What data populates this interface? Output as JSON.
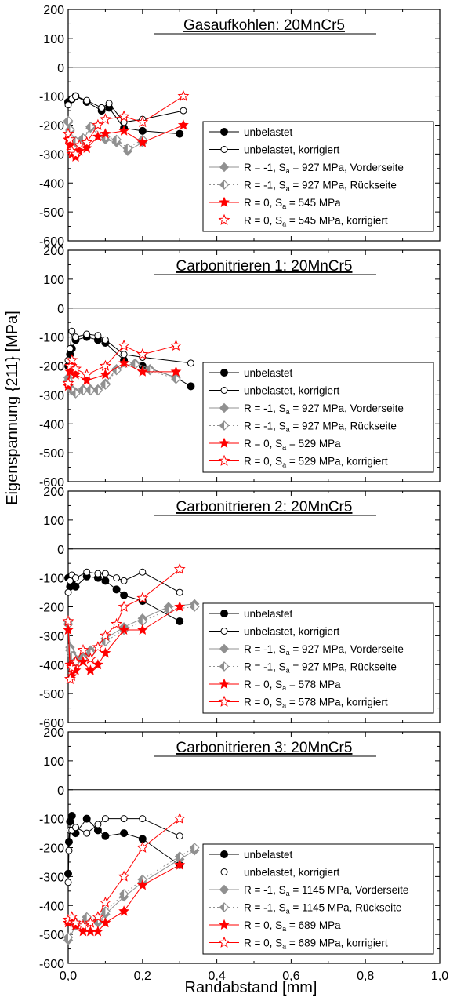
{
  "figure": {
    "xlabel": "Randabstand [mm]",
    "ylabel": "Eigenspannung {211} [MPa]",
    "x_ticks": [
      "0,0",
      "0,2",
      "0,4",
      "0,6",
      "0,8",
      "1,0"
    ],
    "y_ticks": [
      "200",
      "100",
      "0",
      "-100",
      "-200",
      "-300",
      "-400",
      "-500",
      "-600"
    ]
  },
  "chart_data": [
    {
      "type": "line",
      "title": "Gasaufkohlen: 20MnCr5",
      "xlim": [
        0,
        1.0
      ],
      "ylim": [
        -600,
        200
      ],
      "series": [
        {
          "name": "unbelastet",
          "style": "filled-circle",
          "color": "#000000",
          "x": [
            0.0,
            0.01,
            0.02,
            0.05,
            0.09,
            0.11,
            0.15,
            0.2,
            0.3
          ],
          "y": [
            -120,
            -110,
            -100,
            -120,
            -150,
            -140,
            -210,
            -220,
            -230
          ]
        },
        {
          "name": "unbelastet, korrigiert",
          "style": "open-circle",
          "color": "#000000",
          "x": [
            0.0,
            0.01,
            0.02,
            0.05,
            0.09,
            0.11,
            0.15,
            0.2,
            0.31
          ],
          "y": [
            -130,
            -110,
            -100,
            -115,
            -140,
            -125,
            -190,
            -180,
            -150
          ]
        },
        {
          "name_parts": [
            "R = -1, S",
            "a",
            " = 927 MPa, Vorderseite"
          ],
          "style": "filled-diamond",
          "color": "#909090",
          "x": [
            0.0,
            0.005,
            0.02,
            0.04,
            0.06,
            0.1,
            0.13,
            0.16,
            0.2
          ],
          "y": [
            -190,
            -220,
            -260,
            -250,
            -210,
            -250,
            -260,
            -290,
            -260
          ]
        },
        {
          "name_parts": [
            "R = -1, S",
            "a",
            " = 927 MPa, Rückseite"
          ],
          "style": "open-diamond",
          "color": "#909090",
          "x": [
            0.0,
            0.005,
            0.02,
            0.04,
            0.06,
            0.1,
            0.13,
            0.16,
            0.2
          ],
          "y": [
            -185,
            -215,
            -255,
            -245,
            -205,
            -240,
            -250,
            -280,
            -250
          ]
        },
        {
          "name_parts": [
            "R = 0, S",
            "a",
            " = 545 MPa"
          ],
          "style": "filled-star",
          "color": "#ff0000",
          "x": [
            0.0,
            0.005,
            0.01,
            0.02,
            0.03,
            0.05,
            0.08,
            0.1,
            0.15,
            0.2,
            0.31
          ],
          "y": [
            -250,
            -270,
            -300,
            -310,
            -290,
            -280,
            -240,
            -230,
            -220,
            -260,
            -200
          ]
        },
        {
          "name_parts": [
            "R = 0, S",
            "a",
            " = 545 MPa, korrigiert"
          ],
          "style": "open-star",
          "color": "#ff0000",
          "x": [
            0.0,
            0.005,
            0.01,
            0.02,
            0.03,
            0.05,
            0.08,
            0.1,
            0.15,
            0.2,
            0.31
          ],
          "y": [
            -230,
            -250,
            -290,
            -300,
            -270,
            -260,
            -200,
            -180,
            -170,
            -190,
            -100
          ]
        }
      ]
    },
    {
      "type": "line",
      "title": "Carbonitrieren 1: 20MnCr5",
      "xlim": [
        0,
        1.0
      ],
      "ylim": [
        -600,
        200
      ],
      "series": [
        {
          "name": "unbelastet",
          "style": "filled-circle",
          "color": "#000000",
          "x": [
            0.0,
            0.005,
            0.01,
            0.02,
            0.05,
            0.08,
            0.1,
            0.15,
            0.2,
            0.29,
            0.33
          ],
          "y": [
            -200,
            -160,
            -140,
            -110,
            -100,
            -110,
            -120,
            -180,
            -200,
            -240,
            -270
          ]
        },
        {
          "name": "unbelastet, korrigiert",
          "style": "open-circle",
          "color": "#000000",
          "x": [
            0.0,
            0.005,
            0.01,
            0.02,
            0.05,
            0.08,
            0.1,
            0.15,
            0.2,
            0.33
          ],
          "y": [
            -180,
            -140,
            -80,
            -100,
            -90,
            -95,
            -110,
            -160,
            -170,
            -190
          ]
        },
        {
          "name_parts": [
            "R = -1, S",
            "a",
            " = 927 MPa, Vorderseite"
          ],
          "style": "filled-diamond",
          "color": "#909090",
          "x": [
            0.0,
            0.01,
            0.02,
            0.04,
            0.06,
            0.08,
            0.1,
            0.13,
            0.18,
            0.22,
            0.29
          ],
          "y": [
            -240,
            -280,
            -290,
            -280,
            -280,
            -280,
            -260,
            -210,
            -190,
            -210,
            -240
          ]
        },
        {
          "name_parts": [
            "R = -1, S",
            "a",
            " = 927 MPa, Rückseite"
          ],
          "style": "open-diamond",
          "color": "#909090",
          "x": [
            0.0,
            0.01,
            0.02,
            0.04,
            0.06,
            0.08,
            0.1,
            0.13,
            0.18,
            0.22,
            0.29
          ],
          "y": [
            -250,
            -285,
            -295,
            -285,
            -285,
            -285,
            -265,
            -215,
            -195,
            -215,
            -245
          ]
        },
        {
          "name_parts": [
            "R = 0, S",
            "a",
            " = 529 MPa"
          ],
          "style": "filled-star",
          "color": "#ff0000",
          "x": [
            0.0,
            0.005,
            0.01,
            0.02,
            0.05,
            0.1,
            0.15,
            0.2,
            0.29
          ],
          "y": [
            -270,
            -220,
            -200,
            -230,
            -250,
            -230,
            -190,
            -220,
            -220
          ]
        },
        {
          "name_parts": [
            "R = 0, S",
            "a",
            " = 529 MPa, korrigiert"
          ],
          "style": "open-star",
          "color": "#ff0000",
          "x": [
            0.0,
            0.005,
            0.01,
            0.02,
            0.05,
            0.1,
            0.15,
            0.2,
            0.29
          ],
          "y": [
            -260,
            -200,
            -180,
            -210,
            -230,
            -200,
            -130,
            -160,
            -130
          ]
        }
      ]
    },
    {
      "type": "line",
      "title": "Carbonitrieren 2: 20MnCr5",
      "xlim": [
        0,
        1.0
      ],
      "ylim": [
        -600,
        200
      ],
      "series": [
        {
          "name": "unbelastet",
          "style": "filled-circle",
          "color": "#000000",
          "x": [
            0.0,
            0.005,
            0.01,
            0.02,
            0.05,
            0.08,
            0.1,
            0.13,
            0.15,
            0.2,
            0.3
          ],
          "y": [
            -100,
            -130,
            -110,
            -130,
            -95,
            -100,
            -110,
            -140,
            -160,
            -180,
            -250
          ]
        },
        {
          "name": "unbelastet, korrigiert",
          "style": "open-circle",
          "color": "#000000",
          "x": [
            0.0,
            0.005,
            0.01,
            0.02,
            0.05,
            0.08,
            0.1,
            0.13,
            0.15,
            0.2,
            0.3
          ],
          "y": [
            -150,
            -110,
            -90,
            -100,
            -80,
            -85,
            -85,
            -100,
            -110,
            -80,
            -150
          ]
        },
        {
          "name_parts": [
            "R = -1, S",
            "a",
            " = 927 MPa, Vorderseite"
          ],
          "style": "filled-diamond",
          "color": "#909090",
          "x": [
            0.0,
            0.005,
            0.01,
            0.02,
            0.04,
            0.06,
            0.1,
            0.15,
            0.2,
            0.27,
            0.34
          ],
          "y": [
            -250,
            -340,
            -360,
            -380,
            -370,
            -350,
            -310,
            -270,
            -240,
            -200,
            -190
          ]
        },
        {
          "name_parts": [
            "R = -1, S",
            "a",
            " = 927 MPa, Rückseite"
          ],
          "style": "open-diamond",
          "color": "#909090",
          "x": [
            0.0,
            0.005,
            0.01,
            0.02,
            0.04,
            0.06,
            0.1,
            0.15,
            0.2,
            0.27,
            0.34
          ],
          "y": [
            -260,
            -350,
            -370,
            -390,
            -380,
            -360,
            -320,
            -280,
            -250,
            -210,
            -200
          ]
        },
        {
          "name_parts": [
            "R = 0, S",
            "a",
            " = 578 MPa"
          ],
          "style": "filled-star",
          "color": "#ff0000",
          "x": [
            0.0,
            0.005,
            0.01,
            0.02,
            0.04,
            0.06,
            0.08,
            0.1,
            0.15,
            0.2,
            0.3
          ],
          "y": [
            -280,
            -400,
            -440,
            -420,
            -390,
            -420,
            -400,
            -360,
            -280,
            -280,
            -200
          ]
        },
        {
          "name_parts": [
            "R = 0, S",
            "a",
            " = 578 MPa, korrigiert"
          ],
          "style": "open-star",
          "color": "#ff0000",
          "x": [
            0.0,
            0.005,
            0.01,
            0.02,
            0.04,
            0.06,
            0.08,
            0.1,
            0.13,
            0.15,
            0.2,
            0.3
          ],
          "y": [
            -250,
            -450,
            -410,
            -390,
            -350,
            -380,
            -340,
            -300,
            -260,
            -200,
            -170,
            -70
          ]
        }
      ]
    },
    {
      "type": "line",
      "title": "Carbonitrieren 3: 20MnCr5",
      "xlim": [
        0,
        1.0
      ],
      "ylim": [
        -600,
        200
      ],
      "series": [
        {
          "name": "unbelastet",
          "style": "filled-circle",
          "color": "#000000",
          "x": [
            0.0,
            0.002,
            0.005,
            0.01,
            0.02,
            0.05,
            0.08,
            0.1,
            0.15,
            0.2,
            0.3
          ],
          "y": [
            -290,
            -180,
            -110,
            -90,
            -150,
            -100,
            -140,
            -160,
            -150,
            -170,
            -260
          ]
        },
        {
          "name": "unbelastet, korrigiert",
          "style": "open-circle",
          "color": "#000000",
          "x": [
            0.0,
            0.002,
            0.005,
            0.01,
            0.02,
            0.05,
            0.08,
            0.1,
            0.15,
            0.2,
            0.3
          ],
          "y": [
            -320,
            -210,
            -140,
            -140,
            -130,
            -150,
            -120,
            -100,
            -100,
            -100,
            -160
          ]
        },
        {
          "name_parts": [
            "R = -1, S",
            "a",
            " = 1145 MPa, Vorderseite"
          ],
          "style": "filled-diamond",
          "color": "#909090",
          "x": [
            0.0,
            0.02,
            0.05,
            0.08,
            0.1,
            0.15,
            0.2,
            0.3,
            0.34
          ],
          "y": [
            -520,
            -470,
            -450,
            -460,
            -430,
            -370,
            -320,
            -240,
            -210
          ]
        },
        {
          "name_parts": [
            "R = -1, S",
            "a",
            " = 1145 MPa, Rückseite"
          ],
          "style": "open-diamond",
          "color": "#909090",
          "x": [
            0.0,
            0.02,
            0.05,
            0.08,
            0.1,
            0.15,
            0.2,
            0.3,
            0.34
          ],
          "y": [
            -510,
            -460,
            -440,
            -450,
            -420,
            -360,
            -310,
            -230,
            -200
          ]
        },
        {
          "name_parts": [
            "R = 0, S",
            "a",
            " = 689 MPa"
          ],
          "style": "filled-star",
          "color": "#ff0000",
          "x": [
            0.0,
            0.01,
            0.02,
            0.04,
            0.06,
            0.08,
            0.1,
            0.15,
            0.2,
            0.3
          ],
          "y": [
            -460,
            -450,
            -470,
            -490,
            -490,
            -490,
            -460,
            -420,
            -330,
            -260
          ]
        },
        {
          "name_parts": [
            "R = 0, S",
            "a",
            " = 689 MPa, korrigiert"
          ],
          "style": "open-star",
          "color": "#ff0000",
          "x": [
            0.0,
            0.01,
            0.02,
            0.04,
            0.06,
            0.08,
            0.1,
            0.15,
            0.2,
            0.3
          ],
          "y": [
            -450,
            -440,
            -460,
            -470,
            -460,
            -440,
            -390,
            -300,
            -200,
            -100
          ]
        }
      ]
    }
  ]
}
